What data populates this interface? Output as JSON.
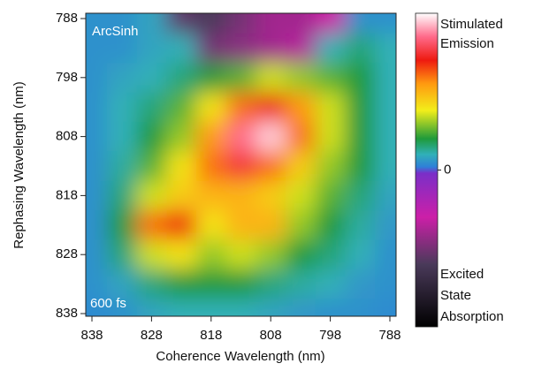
{
  "chart_data": {
    "type": "heatmap",
    "xlabel": "Coherence Wavelength (nm)",
    "ylabel": "Rephasing Wavelength (nm)",
    "annotations": [
      "ArcSinh",
      "600 fs"
    ],
    "x": [
      838,
      833,
      828,
      823,
      818,
      813,
      808,
      803,
      798,
      793,
      788
    ],
    "y": [
      788,
      793,
      798,
      803,
      808,
      813,
      818,
      823,
      828,
      833,
      838
    ],
    "z": [
      [
        0.05,
        0.05,
        0.08,
        -0.55,
        -0.6,
        -0.5,
        -0.4,
        -0.4,
        -0.3,
        0.05,
        0.05
      ],
      [
        0.05,
        0.05,
        0.08,
        0.1,
        -0.5,
        -0.45,
        -0.4,
        -0.35,
        0.1,
        0.15,
        0.1
      ],
      [
        0.05,
        0.08,
        0.1,
        0.15,
        0.2,
        0.25,
        0.35,
        0.3,
        0.25,
        0.2,
        0.1
      ],
      [
        0.05,
        0.1,
        0.15,
        0.25,
        0.4,
        0.6,
        0.7,
        0.55,
        0.35,
        0.2,
        0.1
      ],
      [
        0.05,
        0.1,
        0.2,
        0.3,
        0.55,
        0.85,
        0.95,
        0.6,
        0.35,
        0.2,
        0.1
      ],
      [
        0.05,
        0.12,
        0.25,
        0.4,
        0.6,
        0.75,
        0.6,
        0.45,
        0.3,
        0.2,
        0.1
      ],
      [
        0.05,
        0.15,
        0.35,
        0.45,
        0.5,
        0.5,
        0.45,
        0.35,
        0.25,
        0.15,
        0.08
      ],
      [
        0.05,
        0.2,
        0.6,
        0.7,
        0.4,
        0.5,
        0.5,
        0.3,
        0.2,
        0.12,
        0.06
      ],
      [
        0.05,
        0.15,
        0.35,
        0.4,
        0.3,
        0.35,
        0.3,
        0.2,
        0.15,
        0.1,
        0.05
      ],
      [
        0.05,
        0.08,
        0.15,
        0.2,
        0.2,
        0.2,
        0.15,
        0.12,
        0.1,
        0.06,
        0.05
      ],
      [
        0.04,
        0.05,
        0.08,
        0.1,
        0.1,
        0.1,
        0.08,
        0.06,
        0.05,
        0.05,
        0.04
      ]
    ],
    "xlim": [
      838,
      788
    ],
    "ylim": [
      788,
      838
    ],
    "xticks": [
      838,
      828,
      818,
      808,
      798,
      788
    ],
    "yticks": [
      788,
      798,
      808,
      818,
      828,
      838
    ],
    "colorbar": {
      "clim": [
        -1,
        1
      ],
      "ticks": [
        0
      ],
      "top_label": [
        "Stimulated",
        "Emission"
      ],
      "bottom_label": [
        "Excited",
        "State",
        "Absorption"
      ]
    },
    "colorscale": [
      [
        -1,
        "#000000"
      ],
      [
        -0.6,
        "#4a3a5a"
      ],
      [
        -0.3,
        "#cc1fa8"
      ],
      [
        -0.02,
        "#7a2fc8"
      ],
      [
        0.02,
        "#2f7fd8"
      ],
      [
        0.1,
        "#30b0b8"
      ],
      [
        0.2,
        "#1f9a3a"
      ],
      [
        0.38,
        "#f2ee1a"
      ],
      [
        0.55,
        "#ff9a10"
      ],
      [
        0.7,
        "#ee1a10"
      ],
      [
        0.85,
        "#ff6a8a"
      ],
      [
        1,
        "#ffffff"
      ]
    ]
  }
}
